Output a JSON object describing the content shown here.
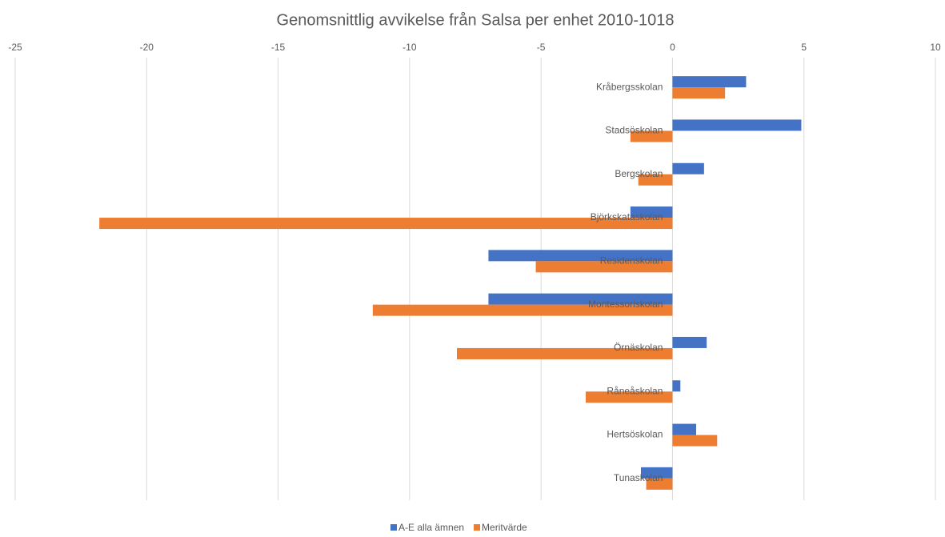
{
  "chart_data": {
    "type": "hbar",
    "title": "Genomsnittlig avvikelse från Salsa per enhet 2010-1018",
    "categories": [
      "Kråbergsskolan",
      "Stadsöskolan",
      "Bergskolan",
      "Björkskataskolan",
      "Residenskolan",
      "Montessoriskolan",
      "Örnäskolan",
      "Råneåskolan",
      "Hertsöskolan",
      "Tunaskolan"
    ],
    "series": [
      {
        "name": "A-E alla ämnen",
        "color": "#4472c4",
        "values": [
          2.8,
          4.9,
          1.2,
          -1.6,
          -7.0,
          -7.0,
          1.3,
          0.3,
          0.9,
          -1.2
        ]
      },
      {
        "name": "Meritvärde",
        "color": "#ed7d31",
        "values": [
          2.0,
          -1.6,
          -1.3,
          -21.8,
          -5.2,
          -11.4,
          -8.2,
          -3.3,
          1.7,
          -1.0
        ]
      }
    ],
    "xlim": [
      -25,
      10
    ],
    "xticks": [
      -25,
      -20,
      -15,
      -10,
      -5,
      0,
      5,
      10
    ],
    "grid": true,
    "legend": "bottom"
  }
}
